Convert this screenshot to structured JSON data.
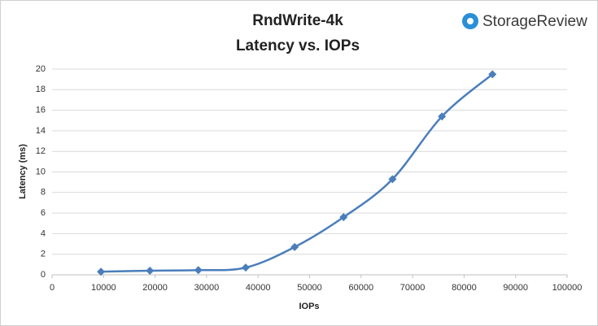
{
  "chart_data": {
    "type": "line",
    "title": "RndWrite-4k",
    "subtitle": "Latency vs. IOPs",
    "logo": "StorageReview",
    "x_label": "IOPs",
    "y_label": "Latency (ms)",
    "x": [
      9500,
      19000,
      28400,
      37600,
      47100,
      56600,
      66100,
      75700,
      85500
    ],
    "series": [
      {
        "name": "Latency",
        "color": "#4a7ebb",
        "values": [
          0.3,
          0.4,
          0.45,
          0.7,
          2.7,
          5.6,
          9.3,
          15.4,
          19.5
        ]
      }
    ],
    "xlim": [
      0,
      100000
    ],
    "xticks": [
      0,
      10000,
      20000,
      30000,
      40000,
      50000,
      60000,
      70000,
      80000,
      90000,
      100000
    ],
    "ylim": [
      0,
      20
    ],
    "yticks": [
      0,
      2,
      4,
      6,
      8,
      10,
      12,
      14,
      16,
      18,
      20
    ],
    "grid": true,
    "smooth": true
  }
}
